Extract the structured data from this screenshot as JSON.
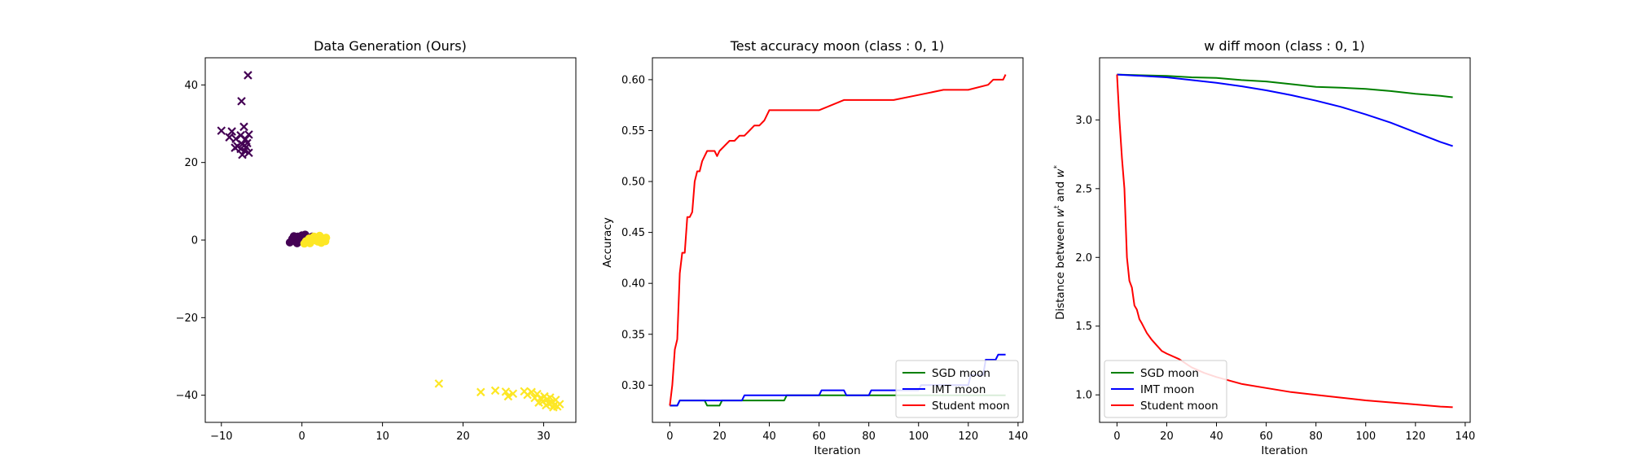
{
  "chart_data": [
    {
      "type": "scatter",
      "title": "Data Generation (Ours)",
      "xlabel": "",
      "ylabel": "",
      "xlim": [
        -12,
        34
      ],
      "ylim": [
        -47,
        47
      ],
      "xticks": [
        -10,
        0,
        10,
        20,
        30
      ],
      "yticks": [
        -40,
        -20,
        0,
        20,
        40
      ],
      "grid": false,
      "colors": {
        "class0": "#440154",
        "class1": "#fde725"
      },
      "series": [
        {
          "marker": "x",
          "color": "#440154",
          "points": [
            [
              -6.7,
              42.5
            ],
            [
              -7.5,
              35.8
            ],
            [
              -10,
              28.2
            ],
            [
              -7.2,
              29.2
            ],
            [
              -8.7,
              28.0
            ],
            [
              -7.6,
              27.0
            ],
            [
              -6.6,
              27.2
            ],
            [
              -8.2,
              26.1
            ],
            [
              -7.0,
              26.0
            ],
            [
              -9.0,
              26.5
            ],
            [
              -6.8,
              25.0
            ],
            [
              -7.4,
              24.7
            ],
            [
              -8.0,
              24.2
            ],
            [
              -6.9,
              24.0
            ],
            [
              -7.6,
              23.5
            ],
            [
              -7.1,
              23.0
            ],
            [
              -6.6,
              22.5
            ],
            [
              -7.4,
              22.0
            ],
            [
              -8.3,
              23.8
            ]
          ]
        },
        {
          "marker": "o",
          "color": "#440154",
          "points": [
            [
              -1.2,
              0.3
            ],
            [
              -0.5,
              0.9
            ],
            [
              0.0,
              1.2
            ],
            [
              0.6,
              0.7
            ],
            [
              -0.8,
              -0.3
            ],
            [
              0.2,
              -0.4
            ],
            [
              1.0,
              0.2
            ],
            [
              -1.5,
              -0.6
            ],
            [
              0.4,
              1.4
            ],
            [
              -0.2,
              0.0
            ],
            [
              1.3,
              0.9
            ],
            [
              -1.0,
              1.0
            ],
            [
              0.8,
              -0.2
            ],
            [
              -0.6,
              -0.8
            ],
            [
              0.1,
              0.5
            ]
          ]
        },
        {
          "marker": "o",
          "color": "#fde725",
          "points": [
            [
              0.5,
              -0.3
            ],
            [
              1.2,
              0.0
            ],
            [
              1.8,
              0.5
            ],
            [
              2.3,
              0.8
            ],
            [
              2.0,
              -0.4
            ],
            [
              1.0,
              -0.8
            ],
            [
              2.7,
              0.1
            ],
            [
              3.0,
              0.6
            ],
            [
              1.5,
              0.9
            ],
            [
              2.4,
              -0.7
            ],
            [
              0.3,
              -0.9
            ],
            [
              2.9,
              -0.3
            ],
            [
              1.7,
              -0.1
            ],
            [
              2.2,
              1.1
            ],
            [
              0.9,
              0.4
            ]
          ]
        },
        {
          "marker": "x",
          "color": "#fde725",
          "points": [
            [
              17.0,
              -37.0
            ],
            [
              22.2,
              -39.2
            ],
            [
              24.0,
              -38.8
            ],
            [
              25.3,
              -39.1
            ],
            [
              25.6,
              -40.3
            ],
            [
              26.2,
              -39.6
            ],
            [
              27.6,
              -39.0
            ],
            [
              28.0,
              -39.9
            ],
            [
              28.5,
              -39.2
            ],
            [
              28.9,
              -40.7
            ],
            [
              29.2,
              -39.7
            ],
            [
              29.6,
              -40.8
            ],
            [
              29.9,
              -41.6
            ],
            [
              30.1,
              -40.3
            ],
            [
              30.4,
              -41.1
            ],
            [
              30.6,
              -42.1
            ],
            [
              30.8,
              -40.6
            ],
            [
              31.0,
              -41.8
            ],
            [
              31.3,
              -42.6
            ],
            [
              31.5,
              -41.2
            ],
            [
              31.7,
              -42.9
            ],
            [
              32.0,
              -42.3
            ],
            [
              31.2,
              -43.1
            ],
            [
              30.3,
              -42.6
            ],
            [
              29.4,
              -41.9
            ]
          ]
        }
      ]
    },
    {
      "type": "line",
      "title": "Test accuracy moon (class : 0, 1)",
      "xlabel": "Iteration",
      "ylabel": "Accuracy",
      "xlim": [
        -7,
        142
      ],
      "ylim": [
        0.2635,
        0.6215
      ],
      "xticks": [
        0,
        20,
        40,
        60,
        80,
        100,
        120,
        140
      ],
      "yticks": [
        0.3,
        0.35,
        0.4,
        0.45,
        0.5,
        0.55,
        0.6
      ],
      "ytick_labels": [
        "0.30",
        "0.35",
        "0.40",
        "0.45",
        "0.50",
        "0.55",
        "0.60"
      ],
      "grid": false,
      "legend_position": "lower right",
      "series": [
        {
          "name": "SGD moon",
          "color": "#008000",
          "x": [
            0,
            3,
            4,
            14,
            15,
            20,
            21,
            46,
            47,
            135
          ],
          "y": [
            0.28,
            0.28,
            0.285,
            0.285,
            0.28,
            0.28,
            0.285,
            0.285,
            0.29,
            0.29
          ]
        },
        {
          "name": "IMT moon",
          "color": "#0000ff",
          "x": [
            0,
            3,
            4,
            29,
            30,
            60,
            61,
            70,
            71,
            80,
            81,
            100,
            101,
            120,
            121,
            126,
            127,
            131,
            132,
            135
          ],
          "y": [
            0.28,
            0.28,
            0.285,
            0.285,
            0.29,
            0.29,
            0.295,
            0.295,
            0.29,
            0.29,
            0.295,
            0.295,
            0.3,
            0.3,
            0.31,
            0.31,
            0.325,
            0.325,
            0.33,
            0.33
          ]
        },
        {
          "name": "Student moon",
          "color": "#ff0000",
          "x": [
            0,
            1,
            2,
            3,
            4,
            5,
            6,
            7,
            8,
            9,
            10,
            11,
            12,
            13,
            14,
            15,
            16,
            18,
            19,
            20,
            22,
            24,
            26,
            28,
            30,
            32,
            34,
            36,
            38,
            40,
            45,
            50,
            55,
            60,
            65,
            70,
            80,
            90,
            100,
            110,
            120,
            128,
            130,
            134,
            135
          ],
          "y": [
            0.28,
            0.3,
            0.335,
            0.345,
            0.41,
            0.43,
            0.43,
            0.465,
            0.465,
            0.47,
            0.5,
            0.51,
            0.51,
            0.52,
            0.525,
            0.53,
            0.53,
            0.53,
            0.525,
            0.53,
            0.535,
            0.54,
            0.54,
            0.545,
            0.545,
            0.55,
            0.555,
            0.555,
            0.56,
            0.57,
            0.57,
            0.57,
            0.57,
            0.57,
            0.575,
            0.58,
            0.58,
            0.58,
            0.585,
            0.59,
            0.59,
            0.595,
            0.6,
            0.6,
            0.605
          ]
        }
      ]
    },
    {
      "type": "line",
      "title": "w diff moon (class : 0, 1)",
      "xlabel": "Iteration",
      "ylabel": "Distance between wt and w*",
      "ylabel_parts": {
        "before": "Distance between ",
        "w1": "w",
        "sup1": "t",
        "mid": " and ",
        "w2": "w",
        "sup2": "*"
      },
      "xlim": [
        -7,
        142
      ],
      "ylim": [
        0.8,
        3.452
      ],
      "xticks": [
        0,
        20,
        40,
        60,
        80,
        100,
        120,
        140
      ],
      "yticks": [
        1.0,
        1.5,
        2.0,
        2.5,
        3.0
      ],
      "ytick_labels": [
        "1.0",
        "1.5",
        "2.0",
        "2.5",
        "3.0"
      ],
      "grid": false,
      "legend_position": "lower left",
      "series": [
        {
          "name": "SGD moon",
          "color": "#008000",
          "x": [
            0,
            10,
            20,
            30,
            40,
            50,
            60,
            70,
            80,
            90,
            100,
            110,
            120,
            130,
            135
          ],
          "y": [
            3.33,
            3.325,
            3.32,
            3.31,
            3.305,
            3.29,
            3.28,
            3.26,
            3.24,
            3.235,
            3.225,
            3.21,
            3.19,
            3.175,
            3.165
          ]
        },
        {
          "name": "IMT moon",
          "color": "#0000ff",
          "x": [
            0,
            10,
            20,
            30,
            40,
            50,
            60,
            70,
            80,
            90,
            100,
            110,
            120,
            130,
            135
          ],
          "y": [
            3.33,
            3.32,
            3.31,
            3.29,
            3.27,
            3.245,
            3.215,
            3.18,
            3.14,
            3.095,
            3.04,
            2.98,
            2.91,
            2.84,
            2.81
          ]
        },
        {
          "name": "Student moon",
          "color": "#ff0000",
          "x": [
            0,
            1,
            2,
            3,
            4,
            5,
            6,
            7,
            8,
            9,
            10,
            12,
            14,
            16,
            18,
            20,
            25,
            30,
            35,
            40,
            50,
            60,
            70,
            80,
            90,
            100,
            110,
            120,
            130,
            135
          ],
          "y": [
            3.33,
            3.0,
            2.72,
            2.5,
            2.0,
            1.83,
            1.78,
            1.65,
            1.62,
            1.55,
            1.52,
            1.45,
            1.4,
            1.36,
            1.32,
            1.3,
            1.26,
            1.2,
            1.16,
            1.13,
            1.08,
            1.05,
            1.02,
            1.0,
            0.98,
            0.96,
            0.945,
            0.93,
            0.915,
            0.91
          ]
        }
      ]
    }
  ]
}
